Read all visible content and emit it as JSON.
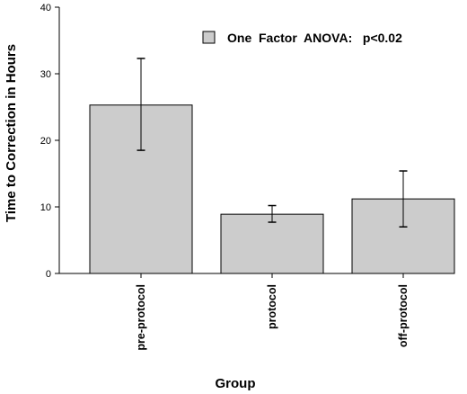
{
  "chart_data": {
    "type": "bar",
    "categories": [
      "pre-protocol",
      "protocol",
      "off-protocol"
    ],
    "values": [
      25.3,
      8.9,
      11.2
    ],
    "error_bars": [
      {
        "low": 18.5,
        "high": 32.3
      },
      {
        "low": 7.7,
        "high": 10.2
      },
      {
        "low": 7.0,
        "high": 15.4
      }
    ],
    "xlabel": "Group",
    "ylabel": "Time to Correction in Hours",
    "ylim": [
      0,
      40
    ],
    "yticks": [
      0,
      10,
      20,
      30,
      40
    ],
    "grid": false,
    "legend": {
      "label": "One  Factor  ANOVA:   p<0.02",
      "placement": "top-right"
    },
    "bar_color": "#cccccc",
    "edge_color": "#000000"
  }
}
